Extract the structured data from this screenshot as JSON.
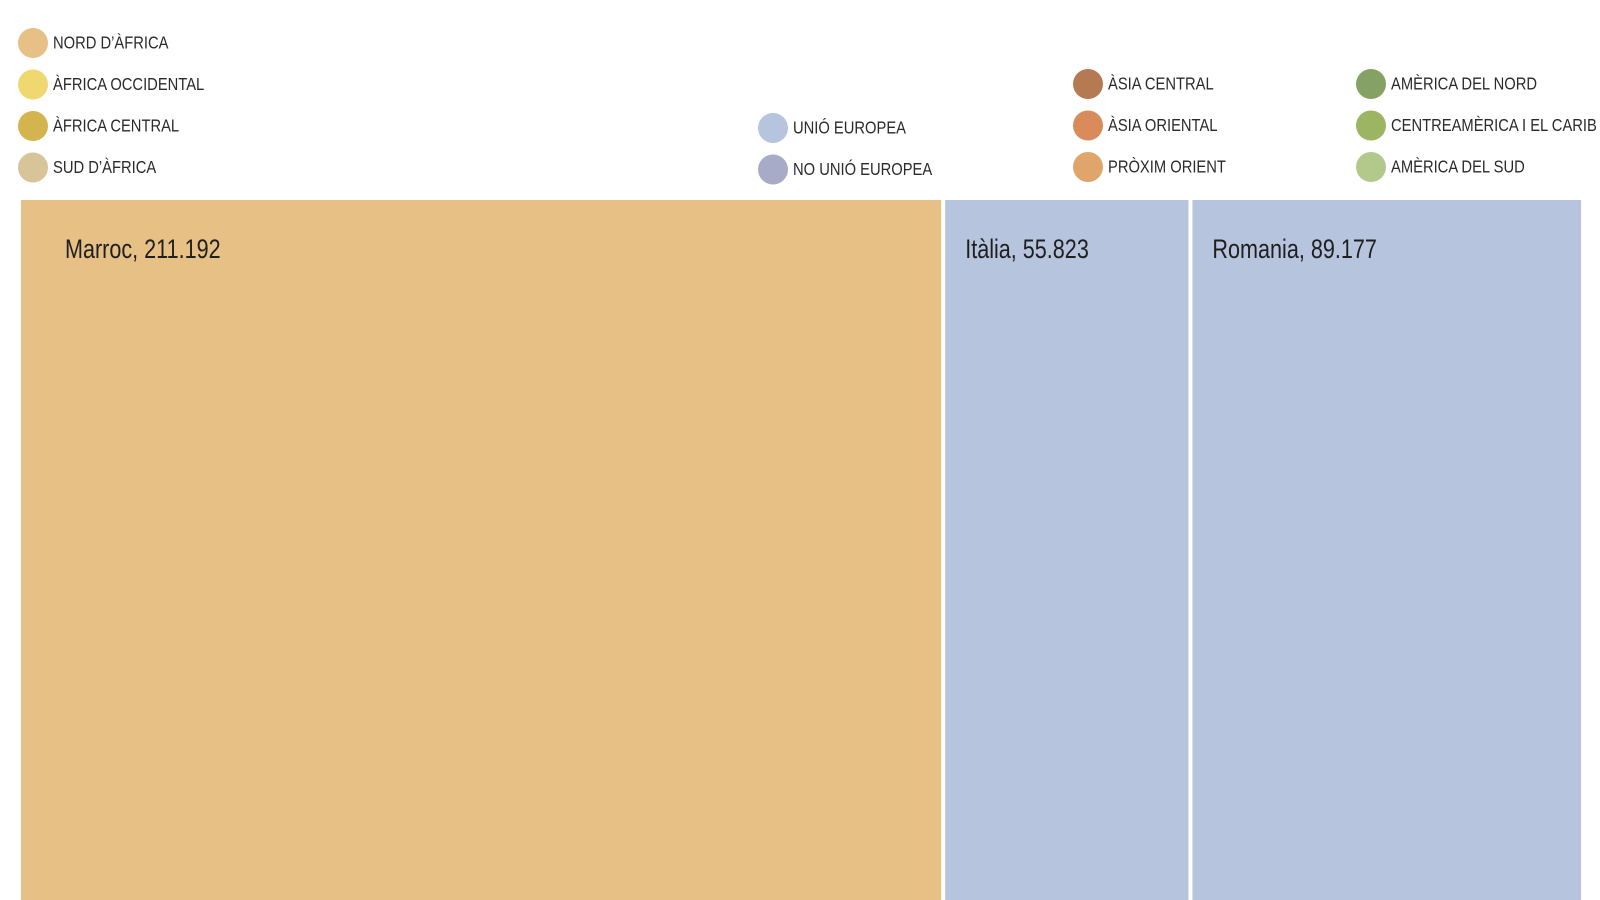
{
  "chart_data": {
    "type": "treemap",
    "legend": [
      {
        "label": "NORD D’ÀFRICA",
        "color": "#e6c084"
      },
      {
        "label": "ÀFRICA OCCIDENTAL",
        "color": "#f0d870"
      },
      {
        "label": "ÀFRICA CENTRAL",
        "color": "#d4b44e"
      },
      {
        "label": "SUD D’ÀFRICA",
        "color": "#d8c499"
      },
      {
        "label": "UNIÓ EUROPEA",
        "color": "#b7c4de"
      },
      {
        "label": "NO UNIÓ EUROPEA",
        "color": "#a7abc7"
      },
      {
        "label": "ÀSIA CENTRAL",
        "color": "#b57a52"
      },
      {
        "label": "ÀSIA ORIENTAL",
        "color": "#d98b5c"
      },
      {
        "label": "PRÒXIM ORIENT",
        "color": "#dfa56a"
      },
      {
        "label": "AMÈRICA DEL NORD",
        "color": "#86a164"
      },
      {
        "label": "CENTREAMÈRICA I EL CARIB",
        "color": "#9bb563"
      },
      {
        "label": "AMÈRICA DEL SUD",
        "color": "#b3c98b"
      }
    ],
    "tiles": [
      {
        "label": "Marroc, 211.192",
        "name": "Marroc",
        "value": 211192,
        "group": "NORD D’ÀFRICA",
        "color": "#e6c084"
      },
      {
        "label": "Itàlia, 55.823",
        "name": "Itàlia",
        "value": 55823,
        "group": "UNIÓ EUROPEA",
        "color": "#b7c4de"
      },
      {
        "label": "Romania, 89.177",
        "name": "Romania",
        "value": 89177,
        "group": "UNIÓ EUROPEA",
        "color": "#b7c4de"
      }
    ]
  }
}
